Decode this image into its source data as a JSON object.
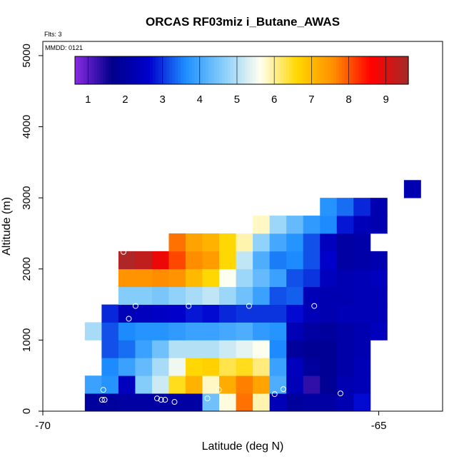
{
  "chart_data": {
    "type": "heatmap",
    "title": "ORCAS RF03miz i_Butane_AWAS",
    "annotations": {
      "flts": "Flts: 3",
      "mmdd": "MMDD: 0121"
    },
    "xlabel": "Latitude (deg N)",
    "ylabel": "Altitude (m)",
    "xlim": [
      -70.0,
      -64.05
    ],
    "ylim": [
      0,
      5200
    ],
    "x_ticks": [
      -70,
      -65
    ],
    "y_ticks": [
      0,
      1000,
      2000,
      3000,
      4000,
      5000
    ],
    "grid": false,
    "legend": "top-left colorbar",
    "colorbar": {
      "min": 0.65,
      "max": 9.6,
      "ticks": [
        1,
        2,
        3,
        4,
        5,
        6,
        7,
        8,
        9
      ],
      "colors": [
        "#8a2be2",
        "#00008b",
        "#0000cd",
        "#1e90ff",
        "#87cefa",
        "#fffff0",
        "#ffd700",
        "#ff8c00",
        "#ff0000",
        "#a52a2a"
      ]
    },
    "cell": {
      "lon_width": 0.25,
      "alt_height": 250
    },
    "cells": [
      [
        -69.25,
        125,
        1.9
      ],
      [
        -69.0,
        125,
        1.9
      ],
      [
        -68.75,
        125,
        2.0
      ],
      [
        -68.5,
        125,
        2.0
      ],
      [
        -68.25,
        125,
        2.0
      ],
      [
        -68.0,
        125,
        2.0
      ],
      [
        -67.75,
        125,
        2.0
      ],
      [
        -67.5,
        125,
        4.4
      ],
      [
        -67.25,
        125,
        5.7
      ],
      [
        -67.0,
        125,
        7.8
      ],
      [
        -66.75,
        125,
        5.9
      ],
      [
        -66.5,
        125,
        2.3
      ],
      [
        -66.25,
        125,
        1.9
      ],
      [
        -66.0,
        125,
        2.0
      ],
      [
        -65.75,
        125,
        2.0
      ],
      [
        -65.5,
        125,
        2.2
      ],
      [
        -65.25,
        125,
        2.7
      ],
      [
        -69.25,
        375,
        3.9
      ],
      [
        -69.0,
        375,
        3.7
      ],
      [
        -68.75,
        375,
        2.4
      ],
      [
        -68.5,
        375,
        4.6
      ],
      [
        -68.25,
        375,
        5.2
      ],
      [
        -68.0,
        375,
        6.5
      ],
      [
        -67.75,
        375,
        7.1
      ],
      [
        -67.5,
        375,
        5.8
      ],
      [
        -67.25,
        375,
        7.2
      ],
      [
        -67.0,
        375,
        7.7
      ],
      [
        -66.75,
        375,
        7.3
      ],
      [
        -66.5,
        375,
        4.1
      ],
      [
        -66.25,
        375,
        2.3
      ],
      [
        -66.0,
        375,
        1.3
      ],
      [
        -65.75,
        375,
        1.8
      ],
      [
        -65.5,
        375,
        2.2
      ],
      [
        -65.25,
        375,
        2.3
      ],
      [
        -69.0,
        625,
        3.6
      ],
      [
        -68.75,
        625,
        3.9
      ],
      [
        -68.5,
        625,
        4.3
      ],
      [
        -68.25,
        625,
        4.9
      ],
      [
        -68.0,
        625,
        5.5
      ],
      [
        -67.75,
        625,
        6.6
      ],
      [
        -67.5,
        625,
        6.7
      ],
      [
        -67.25,
        625,
        6.3
      ],
      [
        -67.0,
        625,
        6.5
      ],
      [
        -66.75,
        625,
        6.1
      ],
      [
        -66.5,
        625,
        3.9
      ],
      [
        -66.25,
        625,
        2.4
      ],
      [
        -66.0,
        625,
        1.9
      ],
      [
        -65.75,
        625,
        1.8
      ],
      [
        -65.5,
        625,
        2.1
      ],
      [
        -65.25,
        625,
        2.3
      ],
      [
        -69.0,
        875,
        3.2
      ],
      [
        -68.75,
        875,
        3.4
      ],
      [
        -68.5,
        875,
        3.9
      ],
      [
        -68.25,
        875,
        4.4
      ],
      [
        -68.0,
        875,
        5.0
      ],
      [
        -67.75,
        875,
        5.0
      ],
      [
        -67.5,
        875,
        5.0
      ],
      [
        -67.25,
        875,
        5.2
      ],
      [
        -67.0,
        875,
        5.4
      ],
      [
        -66.75,
        875,
        5.6
      ],
      [
        -66.5,
        875,
        3.6
      ],
      [
        -66.25,
        875,
        1.9
      ],
      [
        -66.0,
        875,
        1.8
      ],
      [
        -65.75,
        875,
        1.8
      ],
      [
        -65.5,
        875,
        2.1
      ],
      [
        -65.25,
        875,
        2.2
      ],
      [
        -69.25,
        1125,
        4.9
      ],
      [
        -69.0,
        1125,
        3.2
      ],
      [
        -68.75,
        1125,
        3.6
      ],
      [
        -68.5,
        1125,
        3.7
      ],
      [
        -68.25,
        1125,
        3.7
      ],
      [
        -68.0,
        1125,
        3.8
      ],
      [
        -67.75,
        1125,
        3.9
      ],
      [
        -67.5,
        1125,
        3.9
      ],
      [
        -67.25,
        1125,
        4.0
      ],
      [
        -67.0,
        1125,
        4.1
      ],
      [
        -66.75,
        1125,
        3.8
      ],
      [
        -66.5,
        1125,
        3.7
      ],
      [
        -66.25,
        1125,
        2.3
      ],
      [
        -66.0,
        1125,
        2.0
      ],
      [
        -65.75,
        1125,
        1.9
      ],
      [
        -65.5,
        1125,
        2.1
      ],
      [
        -65.25,
        1125,
        2.2
      ],
      [
        -65.0,
        1125,
        2.4
      ],
      [
        -69.0,
        1375,
        2.9
      ],
      [
        -68.75,
        1375,
        2.3
      ],
      [
        -68.5,
        1375,
        2.4
      ],
      [
        -68.25,
        1375,
        2.5
      ],
      [
        -68.0,
        1375,
        2.6
      ],
      [
        -67.75,
        1375,
        2.8
      ],
      [
        -67.5,
        1375,
        2.7
      ],
      [
        -67.25,
        1375,
        2.9
      ],
      [
        -67.0,
        1375,
        3.0
      ],
      [
        -66.75,
        1375,
        3.0
      ],
      [
        -66.5,
        1375,
        3.0
      ],
      [
        -66.25,
        1375,
        2.7
      ],
      [
        -66.0,
        1375,
        2.3
      ],
      [
        -65.75,
        1375,
        2.2
      ],
      [
        -65.5,
        1375,
        2.3
      ],
      [
        -65.25,
        1375,
        2.3
      ],
      [
        -65.0,
        1375,
        2.3
      ],
      [
        -68.75,
        1625,
        4.6
      ],
      [
        -68.5,
        1625,
        4.6
      ],
      [
        -68.25,
        1625,
        4.5
      ],
      [
        -68.0,
        1625,
        4.7
      ],
      [
        -67.75,
        1625,
        4.9
      ],
      [
        -67.5,
        1625,
        5.1
      ],
      [
        -67.25,
        1625,
        4.8
      ],
      [
        -67.0,
        1625,
        4.4
      ],
      [
        -66.75,
        1625,
        3.9
      ],
      [
        -66.5,
        1625,
        3.2
      ],
      [
        -66.25,
        1625,
        3.3
      ],
      [
        -66.0,
        1625,
        2.3
      ],
      [
        -65.75,
        1625,
        2.2
      ],
      [
        -65.5,
        1625,
        2.2
      ],
      [
        -65.25,
        1625,
        2.3
      ],
      [
        -65.0,
        1625,
        2.3
      ],
      [
        -68.75,
        1875,
        7.5
      ],
      [
        -68.5,
        1875,
        7.5
      ],
      [
        -68.25,
        1875,
        7.6
      ],
      [
        -68.0,
        1875,
        7.5
      ],
      [
        -67.75,
        1875,
        7.0
      ],
      [
        -67.5,
        1875,
        6.6
      ],
      [
        -67.25,
        1875,
        5.6
      ],
      [
        -67.0,
        1875,
        4.8
      ],
      [
        -66.75,
        1875,
        4.3
      ],
      [
        -66.5,
        1875,
        3.9
      ],
      [
        -66.25,
        1875,
        3.2
      ],
      [
        -66.0,
        1875,
        3.0
      ],
      [
        -65.75,
        1875,
        2.4
      ],
      [
        -65.5,
        1875,
        2.2
      ],
      [
        -65.25,
        1875,
        2.3
      ],
      [
        -65.0,
        1875,
        2.4
      ],
      [
        -68.75,
        2125,
        9.5
      ],
      [
        -68.5,
        2125,
        9.3
      ],
      [
        -68.25,
        2125,
        8.8
      ],
      [
        -68.0,
        2125,
        8.1
      ],
      [
        -67.75,
        2125,
        7.6
      ],
      [
        -67.5,
        2125,
        7.4
      ],
      [
        -67.25,
        2125,
        6.6
      ],
      [
        -67.0,
        2125,
        5.1
      ],
      [
        -66.75,
        2125,
        4.1
      ],
      [
        -66.5,
        2125,
        3.5
      ],
      [
        -66.25,
        2125,
        3.6
      ],
      [
        -66.0,
        2125,
        3.2
      ],
      [
        -65.75,
        2125,
        2.6
      ],
      [
        -65.5,
        2125,
        2.0
      ],
      [
        -65.25,
        2125,
        2.1
      ],
      [
        -65.0,
        2125,
        2.2
      ],
      [
        -68.0,
        2375,
        7.8
      ],
      [
        -67.75,
        2375,
        7.3
      ],
      [
        -67.5,
        2375,
        7.1
      ],
      [
        -67.25,
        2375,
        6.6
      ],
      [
        -67.0,
        2375,
        5.9
      ],
      [
        -66.75,
        2375,
        4.7
      ],
      [
        -66.5,
        2375,
        4.0
      ],
      [
        -66.25,
        2375,
        3.7
      ],
      [
        -66.0,
        2375,
        3.2
      ],
      [
        -65.75,
        2375,
        2.4
      ],
      [
        -65.5,
        2375,
        2.0
      ],
      [
        -65.25,
        2375,
        2.1
      ],
      [
        -66.75,
        2625,
        5.8
      ],
      [
        -66.5,
        2625,
        4.8
      ],
      [
        -66.25,
        2625,
        4.3
      ],
      [
        -66.0,
        2625,
        3.8
      ],
      [
        -65.75,
        2625,
        3.6
      ],
      [
        -65.5,
        2625,
        2.8
      ],
      [
        -65.25,
        2625,
        2.3
      ],
      [
        -65.0,
        2625,
        2.2
      ],
      [
        -65.75,
        2875,
        3.7
      ],
      [
        -65.5,
        2875,
        3.4
      ],
      [
        -65.25,
        2875,
        2.9
      ],
      [
        -65.0,
        2875,
        2.2
      ],
      [
        -64.5,
        3125,
        2.2
      ]
    ],
    "samples": [
      [
        -69.1,
        300
      ],
      [
        -69.12,
        160
      ],
      [
        -69.08,
        160
      ],
      [
        -68.8,
        2240
      ],
      [
        -68.72,
        1300
      ],
      [
        -68.62,
        1480
      ],
      [
        -68.3,
        180
      ],
      [
        -68.24,
        160
      ],
      [
        -68.18,
        160
      ],
      [
        -68.04,
        130
      ],
      [
        -67.83,
        1480
      ],
      [
        -67.55,
        180
      ],
      [
        -67.38,
        300
      ],
      [
        -66.93,
        1480
      ],
      [
        -66.55,
        240
      ],
      [
        -66.42,
        310
      ],
      [
        -65.96,
        1480
      ],
      [
        -65.57,
        250
      ],
      [
        -64.7,
        3230
      ]
    ]
  }
}
